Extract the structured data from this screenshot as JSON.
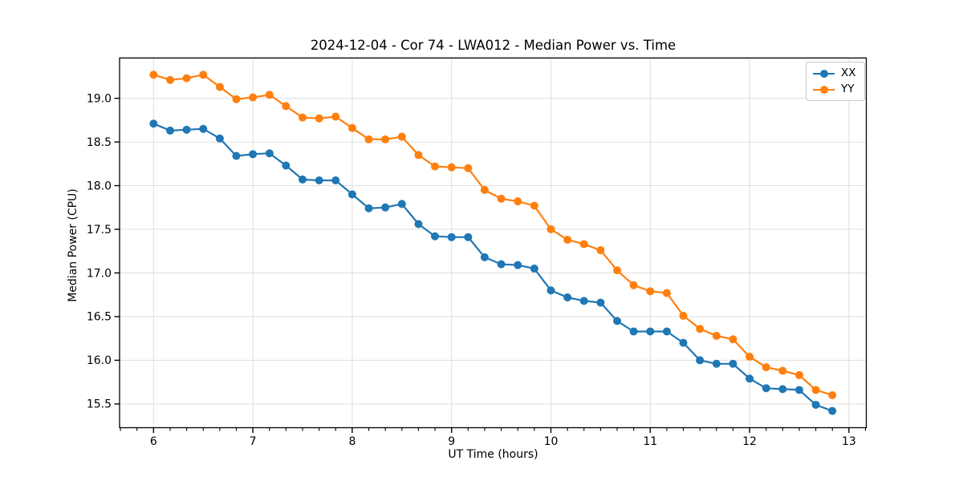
{
  "figure": {
    "title": "2024-12-04 - Cor 74 - LWA012 - Median Power vs. Time"
  },
  "legend": {
    "entries": [
      {
        "label": "XX",
        "color": "#1f77b4"
      },
      {
        "label": "YY",
        "color": "#ff7f0e"
      }
    ]
  },
  "chart_data": {
    "type": "line",
    "title": "2024-12-04 - Cor 74 - LWA012 - Median Power vs. Time",
    "xlabel": "UT Time (hours)",
    "ylabel": "Median Power (CPU)",
    "x": [
      6.0,
      6.167,
      6.333,
      6.5,
      6.667,
      6.833,
      7.0,
      7.167,
      7.333,
      7.5,
      7.667,
      7.833,
      8.0,
      8.167,
      8.333,
      8.5,
      8.667,
      8.833,
      9.0,
      9.167,
      9.333,
      9.5,
      9.667,
      9.833,
      10.0,
      10.167,
      10.333,
      10.5,
      10.667,
      10.833,
      11.0,
      11.167,
      11.333,
      11.5,
      11.667,
      11.833,
      12.0,
      12.167,
      12.333,
      12.5,
      12.667,
      12.833
    ],
    "series": [
      {
        "name": "XX",
        "color": "#1f77b4",
        "marker": "circle",
        "values": [
          18.71,
          18.63,
          18.64,
          18.65,
          18.54,
          18.34,
          18.36,
          18.37,
          18.23,
          18.07,
          18.06,
          18.06,
          17.9,
          17.74,
          17.75,
          17.79,
          17.56,
          17.42,
          17.41,
          17.41,
          17.18,
          17.1,
          17.09,
          17.05,
          16.8,
          16.72,
          16.68,
          16.66,
          16.45,
          16.33,
          16.33,
          16.33,
          16.2,
          16.0,
          15.96,
          15.96,
          15.79,
          15.68,
          15.67,
          15.66,
          15.49,
          15.42
        ]
      },
      {
        "name": "YY",
        "color": "#ff7f0e",
        "marker": "circle",
        "values": [
          19.27,
          19.21,
          19.23,
          19.27,
          19.13,
          18.99,
          19.01,
          19.04,
          18.91,
          18.78,
          18.77,
          18.79,
          18.66,
          18.53,
          18.53,
          18.56,
          18.35,
          18.22,
          18.21,
          18.2,
          17.95,
          17.85,
          17.82,
          17.77,
          17.5,
          17.38,
          17.33,
          17.26,
          17.03,
          16.86,
          16.79,
          16.77,
          16.51,
          16.36,
          16.28,
          16.24,
          16.04,
          15.92,
          15.88,
          15.83,
          15.66,
          15.6
        ]
      }
    ],
    "xlim": [
      5.658,
      13.175
    ],
    "ylim": [
      15.228,
      19.462
    ],
    "x_ticks": [
      6,
      7,
      8,
      9,
      10,
      11,
      12,
      13
    ],
    "x_minor_tick_step_hours": 0.1667,
    "y_ticks": [
      15.5,
      16.0,
      16.5,
      17.0,
      17.5,
      18.0,
      18.5,
      19.0
    ],
    "grid": true,
    "grid_color": "#dedede",
    "axis_color": "#000000",
    "legend_position": "upper right"
  }
}
